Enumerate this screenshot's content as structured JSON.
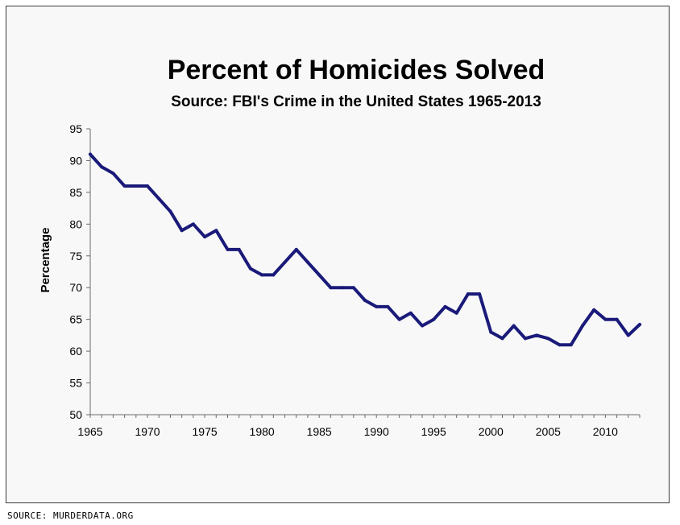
{
  "source_note": "SOURCE: MURDERDATA.ORG",
  "chart_data": {
    "type": "line",
    "title": "Percent of Homicides Solved",
    "subtitle": "Source: FBI's Crime in the United States 1965-2013",
    "xlabel": "",
    "ylabel": "Percentage",
    "xlim": [
      1965,
      2013
    ],
    "ylim": [
      50,
      95
    ],
    "x_ticks": [
      1965,
      1970,
      1975,
      1980,
      1985,
      1990,
      1995,
      2000,
      2005,
      2010
    ],
    "y_ticks": [
      50,
      55,
      60,
      65,
      70,
      75,
      80,
      85,
      90,
      95
    ],
    "grid": false,
    "line_color": "#1a1a7a",
    "series": [
      {
        "x": [
          1965,
          1966,
          1967,
          1968,
          1969,
          1970,
          1971,
          1972,
          1973,
          1974,
          1975,
          1976,
          1977,
          1978,
          1979,
          1980,
          1981,
          1982,
          1983,
          1984,
          1985,
          1986,
          1987,
          1988,
          1989,
          1990,
          1991,
          1992,
          1993,
          1994,
          1995,
          1996,
          1997,
          1998,
          1999,
          2000,
          2001,
          2002,
          2003,
          2004,
          2005,
          2006,
          2007,
          2008,
          2009,
          2010,
          2011,
          2012,
          2013
        ],
        "values": [
          91,
          89,
          88,
          86,
          86,
          86,
          84,
          82,
          79,
          80,
          78,
          79,
          76,
          76,
          73,
          72,
          72,
          74,
          76,
          74,
          72,
          70,
          70,
          70,
          68,
          67,
          67,
          65,
          66,
          64,
          65,
          67,
          66,
          69,
          69,
          63,
          62,
          64,
          62,
          62.5,
          62,
          61,
          61,
          64,
          66.5,
          65,
          65,
          62.5,
          64.2
        ]
      }
    ]
  }
}
